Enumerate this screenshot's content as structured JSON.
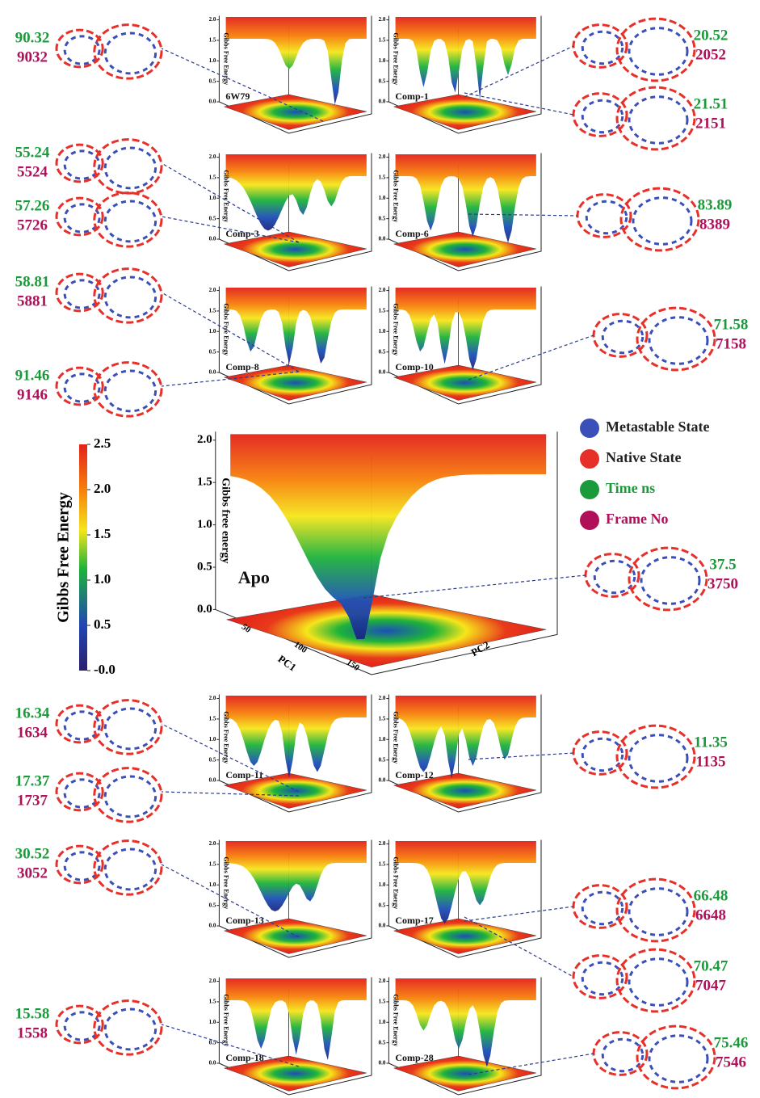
{
  "colorbar": {
    "label": "Gibbs Free Energy",
    "ticks": [
      {
        "value": 0,
        "label": "-0.0"
      },
      {
        "value": 0.5,
        "label": "0.5"
      },
      {
        "value": 1,
        "label": "1.0"
      },
      {
        "value": 1.5,
        "label": "1.5"
      },
      {
        "value": 2,
        "label": "2.0"
      },
      {
        "value": 2.5,
        "label": "2.5"
      }
    ],
    "lim": [
      0,
      2.5
    ]
  },
  "legend": [
    {
      "label": "Metastable State",
      "color": "#3b4fb8"
    },
    {
      "label": "Native State",
      "color": "#e8302a"
    },
    {
      "label": "Time ns",
      "color": "#1a9a3a"
    },
    {
      "label": "Frame No",
      "color": "#b0105a"
    }
  ],
  "main_panel": {
    "name": "Apo",
    "zlabel": "Gibbs free energy",
    "zticks": [
      {
        "value": 0,
        "label": "0.0"
      },
      {
        "value": 0.5,
        "label": "0.5"
      },
      {
        "value": 1,
        "label": "1.0"
      },
      {
        "value": 1.5,
        "label": "1.5"
      },
      {
        "value": 2,
        "label": "2.0"
      }
    ],
    "zlim": [
      0,
      2.1
    ],
    "xlabel": "PC1",
    "ylabel": "PC2",
    "xticks": [
      50,
      100,
      150
    ]
  },
  "small_zticks": [
    {
      "value": 0,
      "label": "0.0"
    },
    {
      "value": 0.5,
      "label": "0.5"
    },
    {
      "value": 1,
      "label": "1.0"
    },
    {
      "value": 1.5,
      "label": "1.5"
    },
    {
      "value": 2,
      "label": "2.0"
    }
  ],
  "small_zlim": [
    0,
    2.1
  ],
  "panels": [
    {
      "name": "6W79",
      "zlabel": "Gibbs Free Energy"
    },
    {
      "name": "Comp-1",
      "zlabel": "Gibbs Free Energy"
    },
    {
      "name": "Comp-3",
      "zlabel": "Gibbs Free Energy"
    },
    {
      "name": "Comp-6",
      "zlabel": "Gibbs Free Energy"
    },
    {
      "name": "Comp-8",
      "zlabel": "Gibbs Free Energy"
    },
    {
      "name": "Comp-10",
      "zlabel": "Gibbs Free Energy"
    },
    {
      "name": "Comp-11",
      "zlabel": "Gibbs Free Energy"
    },
    {
      "name": "Comp-12",
      "zlabel": "Gibbs Free Energy"
    },
    {
      "name": "Comp-13",
      "zlabel": "Gibbs Free Energy"
    },
    {
      "name": "Comp-17",
      "zlabel": "Gibbs Free Energy"
    },
    {
      "name": "Comp-18",
      "zlabel": "Gibbs Free Energy"
    },
    {
      "name": "Comp-28",
      "zlabel": "Gibbs Free Energy"
    }
  ],
  "annotations": [
    {
      "time": 90.32,
      "frame": 9032
    },
    {
      "time": 20.52,
      "frame": 2052
    },
    {
      "time": 21.51,
      "frame": 2151
    },
    {
      "time": 55.24,
      "frame": 5524
    },
    {
      "time": 57.26,
      "frame": 5726
    },
    {
      "time": 83.89,
      "frame": 8389
    },
    {
      "time": 58.81,
      "frame": 5881
    },
    {
      "time": 71.58,
      "frame": 7158
    },
    {
      "time": 91.46,
      "frame": 9146
    },
    {
      "time": 37.5,
      "frame": 3750
    },
    {
      "time": 16.34,
      "frame": 1634
    },
    {
      "time": 11.35,
      "frame": 1135
    },
    {
      "time": 17.37,
      "frame": 1737
    },
    {
      "time": 30.52,
      "frame": 3052
    },
    {
      "time": 66.48,
      "frame": 6648
    },
    {
      "time": 70.47,
      "frame": 7047
    },
    {
      "time": 15.58,
      "frame": 1558
    },
    {
      "time": 75.46,
      "frame": 7546
    }
  ]
}
